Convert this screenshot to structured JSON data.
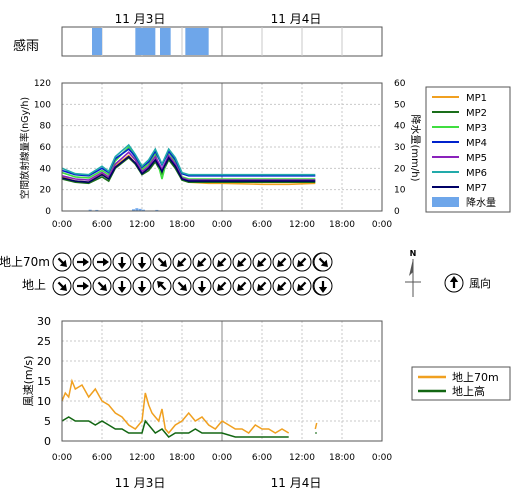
{
  "dates": {
    "top": [
      "11 月3日",
      "11 月4日"
    ],
    "bottom": [
      "11 月3日",
      "11 月4日"
    ]
  },
  "rain_strip": {
    "label": "感雨",
    "color": "#6ea6ea",
    "intervals_hours": [
      [
        4.5,
        6.0
      ],
      [
        11.0,
        14.0
      ],
      [
        14.7,
        16.3
      ],
      [
        18.5,
        22.0
      ]
    ]
  },
  "radiation_chart": {
    "type": "line",
    "ylabel_left": "空間放射線量率(nGy/h)",
    "ylabel_right": "降水量(mm/h)",
    "xlim_hours": [
      0,
      48
    ],
    "x_ticks": [
      "0:00",
      "6:00",
      "12:00",
      "18:00",
      "0:00",
      "6:00",
      "12:00",
      "18:00",
      "0:00"
    ],
    "ylim_left": [
      0,
      120
    ],
    "ylim_right": [
      0,
      60
    ],
    "y_ticks_left": [
      "0",
      "20",
      "40",
      "60",
      "80",
      "100",
      "120"
    ],
    "y_ticks_right": [
      "0",
      "10",
      "20",
      "30",
      "40",
      "50",
      "60"
    ],
    "legend_position": "right",
    "series": [
      {
        "name": "MP1",
        "color": "#f0a020",
        "points": [
          [
            0,
            32
          ],
          [
            2,
            28
          ],
          [
            4,
            27
          ],
          [
            6,
            35
          ],
          [
            7,
            30
          ],
          [
            8,
            42
          ],
          [
            10,
            52
          ],
          [
            11,
            45
          ],
          [
            12,
            36
          ],
          [
            13,
            40
          ],
          [
            14,
            48
          ],
          [
            15,
            36
          ],
          [
            16,
            50
          ],
          [
            17,
            42
          ],
          [
            18,
            30
          ],
          [
            19,
            27
          ],
          [
            22,
            26
          ],
          [
            24,
            26
          ],
          [
            30,
            25
          ],
          [
            34,
            25
          ],
          [
            38,
            26
          ]
        ]
      },
      {
        "name": "MP2",
        "color": "#1a6e1a",
        "points": [
          [
            0,
            30
          ],
          [
            2,
            27
          ],
          [
            4,
            26
          ],
          [
            6,
            32
          ],
          [
            7,
            28
          ],
          [
            8,
            40
          ],
          [
            10,
            50
          ],
          [
            11,
            44
          ],
          [
            12,
            34
          ],
          [
            13,
            38
          ],
          [
            14,
            46
          ],
          [
            15,
            35
          ],
          [
            16,
            48
          ],
          [
            17,
            40
          ],
          [
            18,
            29
          ],
          [
            19,
            27
          ],
          [
            22,
            27
          ],
          [
            24,
            27
          ],
          [
            30,
            27
          ],
          [
            34,
            27
          ],
          [
            38,
            27
          ]
        ]
      },
      {
        "name": "MP3",
        "color": "#40dd40",
        "points": [
          [
            0,
            36
          ],
          [
            2,
            32
          ],
          [
            4,
            31
          ],
          [
            6,
            38
          ],
          [
            7,
            34
          ],
          [
            8,
            47
          ],
          [
            10,
            60
          ],
          [
            11,
            50
          ],
          [
            12,
            39
          ],
          [
            13,
            44
          ],
          [
            14,
            54
          ],
          [
            15,
            30
          ],
          [
            16,
            55
          ],
          [
            17,
            46
          ],
          [
            18,
            32
          ],
          [
            19,
            30
          ],
          [
            22,
            30
          ],
          [
            24,
            30
          ],
          [
            30,
            30
          ],
          [
            34,
            30
          ],
          [
            38,
            30
          ]
        ]
      },
      {
        "name": "MP4",
        "color": "#0022cc",
        "points": [
          [
            0,
            38
          ],
          [
            2,
            34
          ],
          [
            4,
            33
          ],
          [
            6,
            40
          ],
          [
            7,
            36
          ],
          [
            8,
            49
          ],
          [
            10,
            58
          ],
          [
            11,
            51
          ],
          [
            12,
            41
          ],
          [
            13,
            46
          ],
          [
            14,
            56
          ],
          [
            15,
            43
          ],
          [
            16,
            56
          ],
          [
            17,
            48
          ],
          [
            18,
            35
          ],
          [
            19,
            33
          ],
          [
            22,
            33
          ],
          [
            24,
            33
          ],
          [
            30,
            33
          ],
          [
            34,
            33
          ],
          [
            38,
            33
          ]
        ]
      },
      {
        "name": "MP5",
        "color": "#8a22bb",
        "points": [
          [
            0,
            33
          ],
          [
            2,
            30
          ],
          [
            4,
            29
          ],
          [
            6,
            36
          ],
          [
            7,
            32
          ],
          [
            8,
            44
          ],
          [
            10,
            55
          ],
          [
            11,
            48
          ],
          [
            12,
            37
          ],
          [
            13,
            42
          ],
          [
            14,
            51
          ],
          [
            15,
            39
          ],
          [
            16,
            52
          ],
          [
            17,
            44
          ],
          [
            18,
            31
          ],
          [
            19,
            29
          ],
          [
            22,
            29
          ],
          [
            24,
            29
          ],
          [
            30,
            29
          ],
          [
            34,
            29
          ],
          [
            38,
            29
          ]
        ]
      },
      {
        "name": "MP6",
        "color": "#22aaaa",
        "points": [
          [
            0,
            40
          ],
          [
            2,
            35
          ],
          [
            4,
            34
          ],
          [
            6,
            42
          ],
          [
            7,
            37
          ],
          [
            8,
            51
          ],
          [
            10,
            62
          ],
          [
            11,
            53
          ],
          [
            12,
            42
          ],
          [
            13,
            48
          ],
          [
            14,
            58
          ],
          [
            15,
            44
          ],
          [
            16,
            58
          ],
          [
            17,
            50
          ],
          [
            18,
            36
          ],
          [
            19,
            34
          ],
          [
            22,
            34
          ],
          [
            24,
            34
          ],
          [
            30,
            34
          ],
          [
            34,
            34
          ],
          [
            38,
            34
          ]
        ]
      },
      {
        "name": "MP7",
        "color": "#000066",
        "points": [
          [
            0,
            31
          ],
          [
            2,
            28
          ],
          [
            4,
            27
          ],
          [
            6,
            34
          ],
          [
            7,
            30
          ],
          [
            8,
            41
          ],
          [
            10,
            51
          ],
          [
            11,
            45
          ],
          [
            12,
            35
          ],
          [
            13,
            40
          ],
          [
            14,
            48
          ],
          [
            15,
            37
          ],
          [
            16,
            50
          ],
          [
            17,
            42
          ],
          [
            18,
            30
          ],
          [
            19,
            28
          ],
          [
            22,
            28
          ],
          [
            24,
            28
          ],
          [
            30,
            28
          ],
          [
            34,
            28
          ],
          [
            38,
            28
          ]
        ]
      }
    ],
    "rain_series": {
      "name": "降水量",
      "color": "#6ea6ea",
      "bars": [
        [
          4,
          0.6
        ],
        [
          5,
          0.5
        ],
        [
          10.5,
          0.8
        ],
        [
          11,
          1.3
        ],
        [
          11.5,
          1.0
        ],
        [
          12,
          0.6
        ],
        [
          14,
          0.5
        ]
      ]
    }
  },
  "wind_direction": {
    "rows": [
      {
        "label": "地上70m",
        "angles_deg": [
          135,
          90,
          90,
          180,
          180,
          135,
          225,
          225,
          225,
          225,
          225,
          225,
          225,
          225
        ],
        "extra_angle_deg": 135
      },
      {
        "label": "地上",
        "angles_deg": [
          135,
          90,
          135,
          180,
          180,
          315,
          135,
          180,
          225,
          225,
          225,
          225,
          225,
          225
        ],
        "extra_angle_deg": 180
      }
    ],
    "legend": {
      "label": "風向",
      "north": "N"
    }
  },
  "wind_speed_chart": {
    "type": "line",
    "ylabel": "風速(m/s)",
    "xlim_hours": [
      0,
      48
    ],
    "x_ticks": [
      "0:00",
      "6:00",
      "12:00",
      "18:00",
      "0:00",
      "6:00",
      "12:00",
      "18:00",
      "0:00"
    ],
    "ylim": [
      0,
      30
    ],
    "y_ticks": [
      "0",
      "5",
      "10",
      "15",
      "20",
      "25",
      "30"
    ],
    "legend_position": "right",
    "series": [
      {
        "name": "地上70m",
        "color": "#f0a020",
        "segments": [
          [
            [
              0,
              10
            ],
            [
              0.5,
              12
            ],
            [
              1,
              11
            ],
            [
              1.5,
              15
            ],
            [
              2,
              13
            ],
            [
              3,
              14
            ],
            [
              4,
              11
            ],
            [
              5,
              13
            ],
            [
              6,
              10
            ],
            [
              7,
              9
            ],
            [
              8,
              7
            ],
            [
              9,
              6
            ],
            [
              10,
              4
            ],
            [
              11,
              3
            ],
            [
              12,
              5
            ],
            [
              12.5,
              12
            ],
            [
              13,
              9
            ],
            [
              13.5,
              7
            ],
            [
              14,
              6
            ],
            [
              14.5,
              5
            ],
            [
              15,
              8
            ],
            [
              15.5,
              3
            ],
            [
              16,
              2
            ],
            [
              17,
              4
            ],
            [
              18,
              5
            ],
            [
              19,
              7
            ],
            [
              20,
              5
            ],
            [
              21,
              6
            ],
            [
              22,
              4
            ],
            [
              23,
              3
            ],
            [
              24,
              5
            ],
            [
              25,
              4
            ],
            [
              26,
              3
            ],
            [
              27,
              3
            ],
            [
              28,
              2
            ],
            [
              29,
              4
            ],
            [
              30,
              3
            ],
            [
              31,
              3
            ],
            [
              32,
              2
            ],
            [
              33,
              3
            ],
            [
              34,
              2
            ]
          ],
          [
            [
              38,
              3
            ],
            [
              38.2,
              4.5
            ]
          ]
        ]
      },
      {
        "name": "地上高",
        "color": "#126612",
        "segments": [
          [
            [
              0,
              5
            ],
            [
              1,
              6
            ],
            [
              2,
              5
            ],
            [
              3,
              5
            ],
            [
              4,
              5
            ],
            [
              5,
              4
            ],
            [
              6,
              5
            ],
            [
              7,
              4
            ],
            [
              8,
              3
            ],
            [
              9,
              3
            ],
            [
              10,
              2
            ],
            [
              11,
              2
            ],
            [
              12,
              2
            ],
            [
              12.5,
              5
            ],
            [
              13,
              4
            ],
            [
              14,
              2
            ],
            [
              15,
              3
            ],
            [
              16,
              1
            ],
            [
              17,
              2
            ],
            [
              18,
              2
            ],
            [
              19,
              2
            ],
            [
              20,
              3
            ],
            [
              21,
              2
            ],
            [
              22,
              2
            ],
            [
              24,
              2
            ],
            [
              26,
              1
            ],
            [
              28,
              1
            ],
            [
              30,
              1
            ],
            [
              32,
              1
            ],
            [
              34,
              1
            ]
          ],
          [
            [
              38,
              2
            ],
            [
              38.2,
              2
            ]
          ]
        ]
      }
    ]
  }
}
